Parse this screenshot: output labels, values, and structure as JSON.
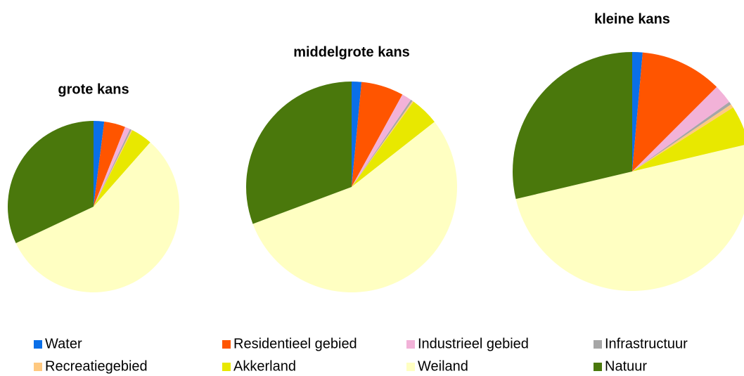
{
  "chart_data": [
    {
      "type": "pie",
      "title": "grote kans",
      "categories": [
        "Water",
        "Residentieel gebied",
        "Industrieel gebied",
        "Infrastructuur",
        "Recreatiegebied",
        "Akkerland",
        "Weiland",
        "Natuur"
      ],
      "values": [
        2,
        4,
        1,
        0.3,
        0.2,
        4,
        56.5,
        32
      ],
      "colors": [
        "#0a6fe8",
        "#ff5500",
        "#f2b2d8",
        "#a6a6a6",
        "#ffc980",
        "#e8e800",
        "#ffffc2",
        "#4a780c"
      ]
    },
    {
      "type": "pie",
      "title": "middelgrote kans",
      "categories": [
        "Water",
        "Residentieel gebied",
        "Industrieel gebied",
        "Infrastructuur",
        "Recreatiegebied",
        "Akkerland",
        "Weiland",
        "Natuur"
      ],
      "values": [
        1.5,
        6.5,
        1.5,
        0.3,
        0.2,
        4.4,
        54.9,
        30.7
      ],
      "colors": [
        "#0a6fe8",
        "#ff5500",
        "#f2b2d8",
        "#a6a6a6",
        "#ffc980",
        "#e8e800",
        "#ffffc2",
        "#4a780c"
      ]
    },
    {
      "type": "pie",
      "title": "kleine kans",
      "categories": [
        "Water",
        "Residentieel gebied",
        "Industrieel gebied",
        "Infrastructuur",
        "Recreatiegebied",
        "Akkerland",
        "Weiland",
        "Natuur"
      ],
      "values": [
        1.4,
        11.1,
        2.6,
        0.4,
        0.5,
        5.3,
        50,
        28.7
      ],
      "colors": [
        "#0a6fe8",
        "#ff5500",
        "#f2b2d8",
        "#a6a6a6",
        "#ffc980",
        "#e8e800",
        "#ffffc2",
        "#4a780c"
      ]
    }
  ]
}
